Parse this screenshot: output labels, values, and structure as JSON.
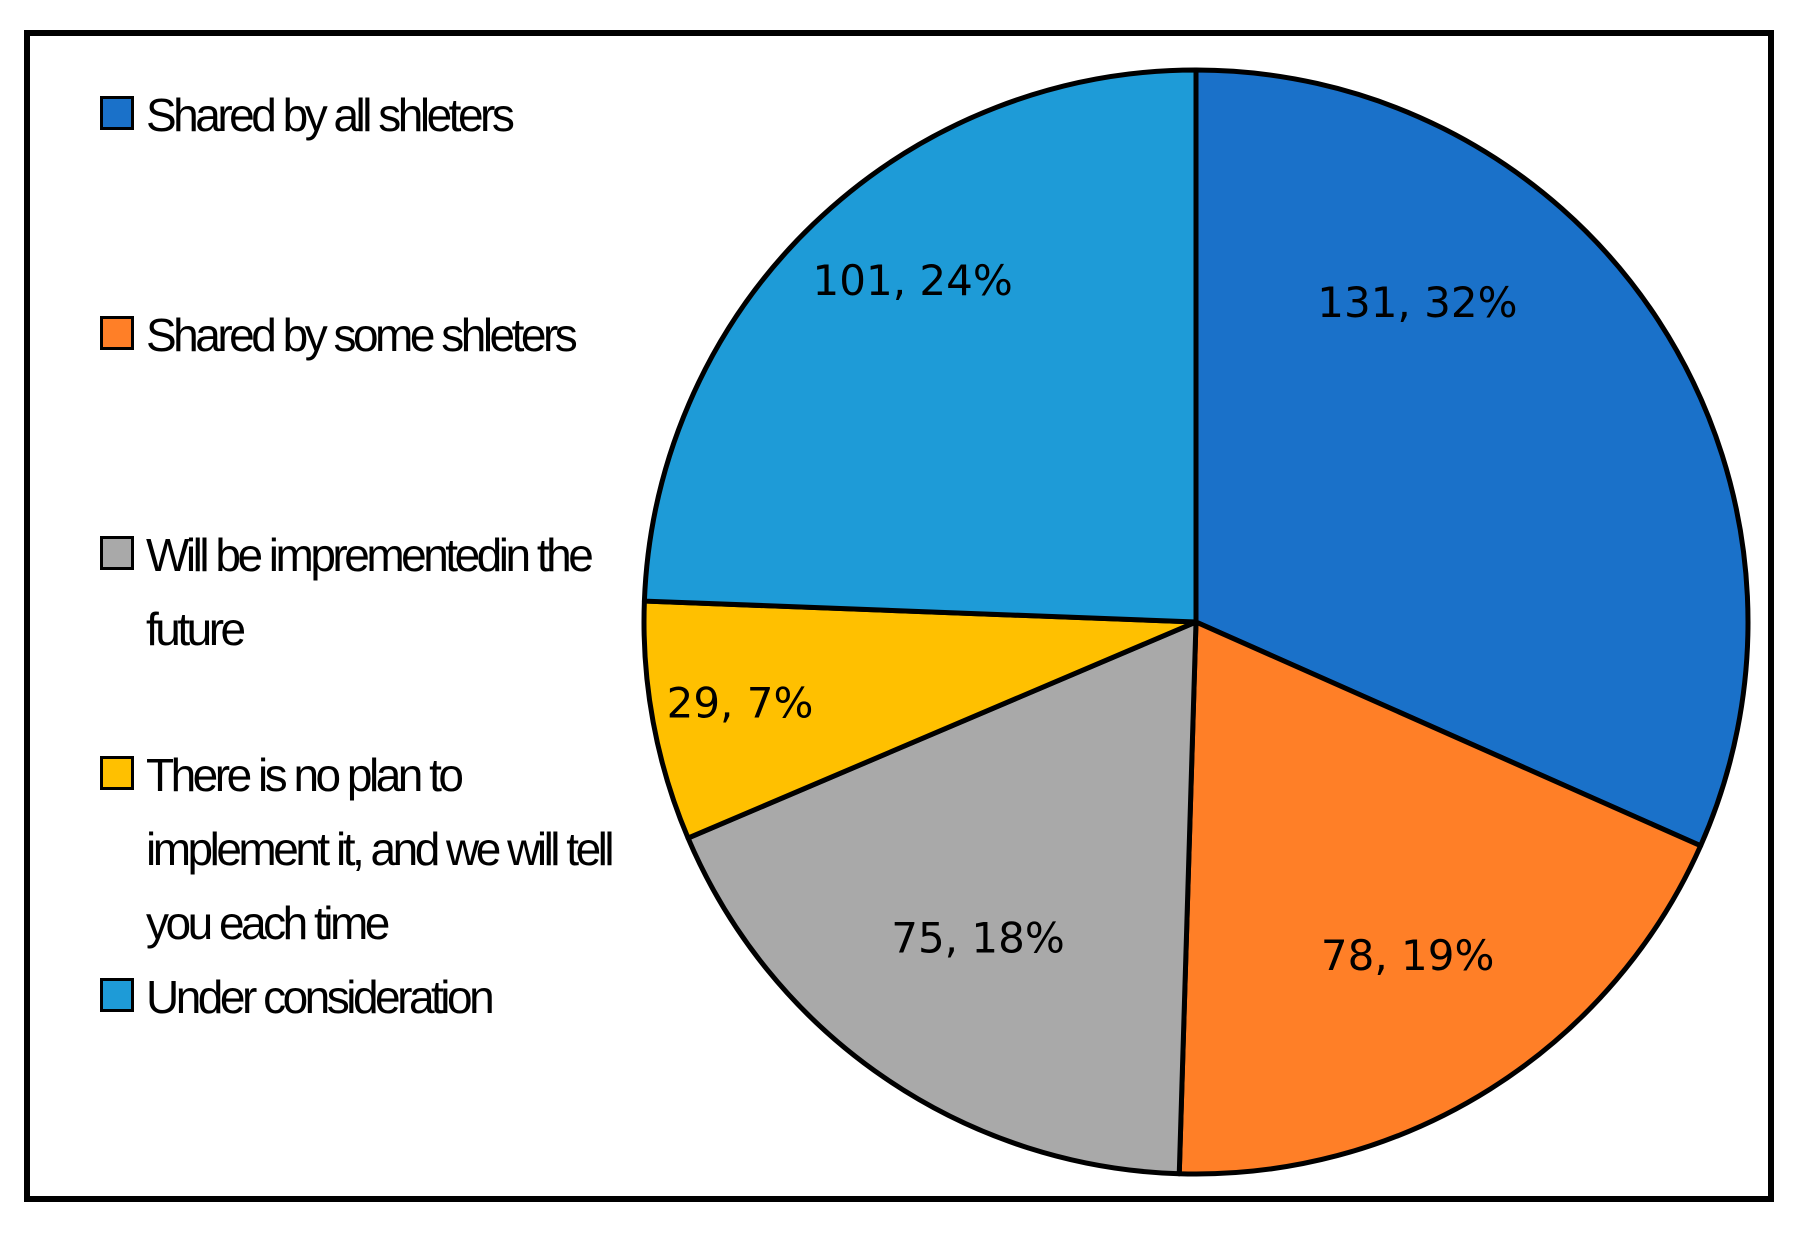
{
  "chart_data": {
    "type": "pie",
    "title": "",
    "legend_position": "left",
    "slices": [
      {
        "label": "Shared by all shleters",
        "value": 131,
        "percent": 32,
        "data_label": "131, 32%",
        "color": "#1A71C9"
      },
      {
        "label": "Shared by some shleters",
        "value": 78,
        "percent": 19,
        "data_label": "78, 19%",
        "color": "#FF7F27"
      },
      {
        "label": "Will be imprementedin the future",
        "value": 75,
        "percent": 18,
        "data_label": "75, 18%",
        "color": "#A9A9A9"
      },
      {
        "label": "There is no plan to implement it, and we will tell you each time",
        "value": 29,
        "percent": 7,
        "data_label": "29, 7%",
        "color": "#FFC000"
      },
      {
        "label": "Under consideration",
        "value": 101,
        "percent": 24,
        "data_label": "101, 24%",
        "color": "#1E9BD7"
      }
    ]
  }
}
